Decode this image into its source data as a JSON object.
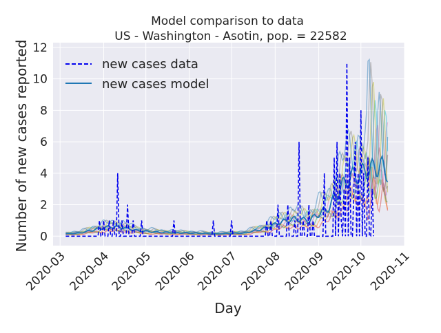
{
  "chart_data": {
    "type": "line",
    "title_line1": "Model comparison to data",
    "title_line2": "US - Washington - Asotin, pop. = 22582",
    "xlabel": "Day",
    "ylabel": "Number of new cases reported",
    "x_range": [
      "2020-02-25",
      "2020-11-01"
    ],
    "ylim": [
      -0.6,
      12.3
    ],
    "yticks": [
      0,
      2,
      4,
      6,
      8,
      10,
      12
    ],
    "xticks": [
      {
        "date": "2020-03-01",
        "label": "2020-03"
      },
      {
        "date": "2020-04-01",
        "label": "2020-04"
      },
      {
        "date": "2020-05-01",
        "label": "2020-05"
      },
      {
        "date": "2020-06-01",
        "label": "2020-06"
      },
      {
        "date": "2020-07-01",
        "label": "2020-07"
      },
      {
        "date": "2020-08-01",
        "label": "2020-08"
      },
      {
        "date": "2020-09-01",
        "label": "2020-09"
      },
      {
        "date": "2020-10-01",
        "label": "2020-10"
      },
      {
        "date": "2020-11-01",
        "label": "2020-11"
      }
    ],
    "grid": true,
    "legend_position": "top-left",
    "legend": [
      "new cases data",
      "new cases model"
    ],
    "series_data": {
      "name": "new cases data",
      "color": "#0000ee",
      "style": "dashed",
      "start_date": "2020-03-05",
      "values": [
        0,
        0,
        0,
        0,
        0,
        0,
        0,
        0,
        0,
        0,
        0,
        0,
        0,
        0,
        0,
        0,
        0,
        0,
        0,
        0,
        0,
        0,
        0,
        0,
        1,
        0,
        0,
        1,
        0,
        0,
        0,
        1,
        0,
        0,
        1,
        0,
        0,
        4,
        0,
        0,
        1,
        0,
        0,
        0,
        2,
        0,
        0,
        0,
        1,
        0,
        0,
        0,
        0,
        0,
        1,
        0,
        0,
        0,
        0,
        0,
        0,
        0,
        0,
        0,
        0,
        0,
        0,
        0,
        0,
        0,
        0,
        0,
        0,
        0,
        0,
        0,
        0,
        1,
        0,
        0,
        0,
        0,
        0,
        0,
        0,
        0,
        0,
        0,
        0,
        0,
        0,
        0,
        0,
        0,
        0,
        0,
        0,
        0,
        0,
        0,
        0,
        0,
        0,
        0,
        0,
        1,
        0,
        0,
        0,
        0,
        0,
        0,
        0,
        0,
        0,
        0,
        0,
        0,
        1,
        0,
        0,
        0,
        0,
        0,
        0,
        0,
        0,
        0,
        0,
        0,
        0,
        0,
        0,
        0,
        0,
        0,
        0,
        0,
        0,
        0,
        0,
        0,
        0,
        1,
        0,
        0,
        1,
        0,
        0,
        0,
        0,
        2,
        0,
        0,
        0,
        0,
        0,
        0,
        2,
        0,
        0,
        0,
        0,
        1,
        0,
        0,
        6,
        0,
        0,
        1,
        0,
        0,
        0,
        2,
        0,
        0,
        1,
        0,
        0,
        0,
        0,
        0,
        0,
        0,
        4,
        0,
        0,
        0,
        0,
        0,
        0,
        5,
        0,
        6,
        0,
        4,
        1,
        0,
        3,
        0,
        11,
        0,
        5,
        0,
        0,
        3,
        6,
        0,
        4,
        0,
        8,
        0,
        4,
        0,
        0,
        5,
        0,
        0,
        3,
        0
      ]
    },
    "model_mean": {
      "name": "new cases model",
      "color": "#1f77b4",
      "points": [
        [
          "2020-03-05",
          0.15
        ],
        [
          "2020-03-15",
          0.2
        ],
        [
          "2020-03-25",
          0.4
        ],
        [
          "2020-04-05",
          0.6
        ],
        [
          "2020-04-15",
          0.55
        ],
        [
          "2020-04-25",
          0.35
        ],
        [
          "2020-05-10",
          0.25
        ],
        [
          "2020-06-01",
          0.2
        ],
        [
          "2020-06-20",
          0.15
        ],
        [
          "2020-07-10",
          0.2
        ],
        [
          "2020-07-25",
          0.5
        ],
        [
          "2020-08-05",
          0.9
        ],
        [
          "2020-08-15",
          1.1
        ],
        [
          "2020-08-25",
          1.0
        ],
        [
          "2020-09-01",
          1.4
        ],
        [
          "2020-09-08",
          1.8
        ],
        [
          "2020-09-15",
          2.8
        ],
        [
          "2020-09-20",
          3.5
        ],
        [
          "2020-09-25",
          3.8
        ],
        [
          "2020-09-30",
          3.9
        ],
        [
          "2020-10-05",
          4.2
        ],
        [
          "2020-10-10",
          4.3
        ],
        [
          "2020-10-15",
          4.5
        ],
        [
          "2020-10-20",
          4.0
        ]
      ]
    },
    "ensemble_band": {
      "name": "model runs",
      "colors": [
        "#d62728",
        "#ff7f0e",
        "#2ca02c",
        "#9467bd",
        "#8c564b",
        "#e377c2",
        "#17becf",
        "#bcbd22",
        "#7f7f7f",
        "#1f77b4"
      ],
      "runs": 10
    }
  }
}
